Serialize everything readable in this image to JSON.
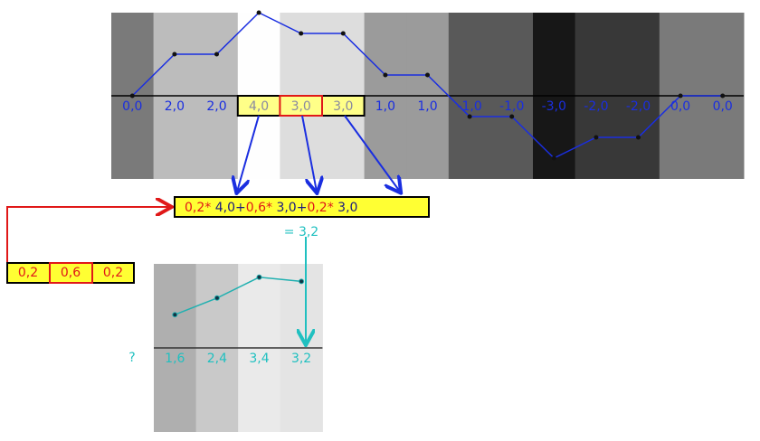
{
  "signal": {
    "values": [
      0,
      2,
      2,
      4,
      3,
      3,
      1,
      1,
      -1,
      -1,
      -3,
      -2,
      -2,
      0,
      0
    ],
    "labels": [
      "0,0",
      "2,0",
      "2,0",
      "4,0",
      "3,0",
      "3,0",
      "1,0",
      "1,0",
      "-1,0",
      "-1,0",
      "-3,0",
      "-2,0",
      "-2,0",
      "0,0",
      "0,0"
    ]
  },
  "kernel": {
    "labels": [
      "0,2",
      "0,6",
      "0,2"
    ]
  },
  "formula": {
    "terms": [
      {
        "weight": "0,2*",
        "value": "4,0"
      },
      {
        "weight": "0,6*",
        "value": "3,0"
      },
      {
        "weight": "0,2*",
        "value": "3,0"
      }
    ],
    "operators": [
      "+",
      "+"
    ]
  },
  "result": "= 3,2",
  "output": {
    "values": [
      1.6,
      2.4,
      3.4,
      3.2
    ],
    "labels": [
      "1,6",
      "2,4",
      "3,4",
      "3,2"
    ],
    "unknown": "?"
  }
}
